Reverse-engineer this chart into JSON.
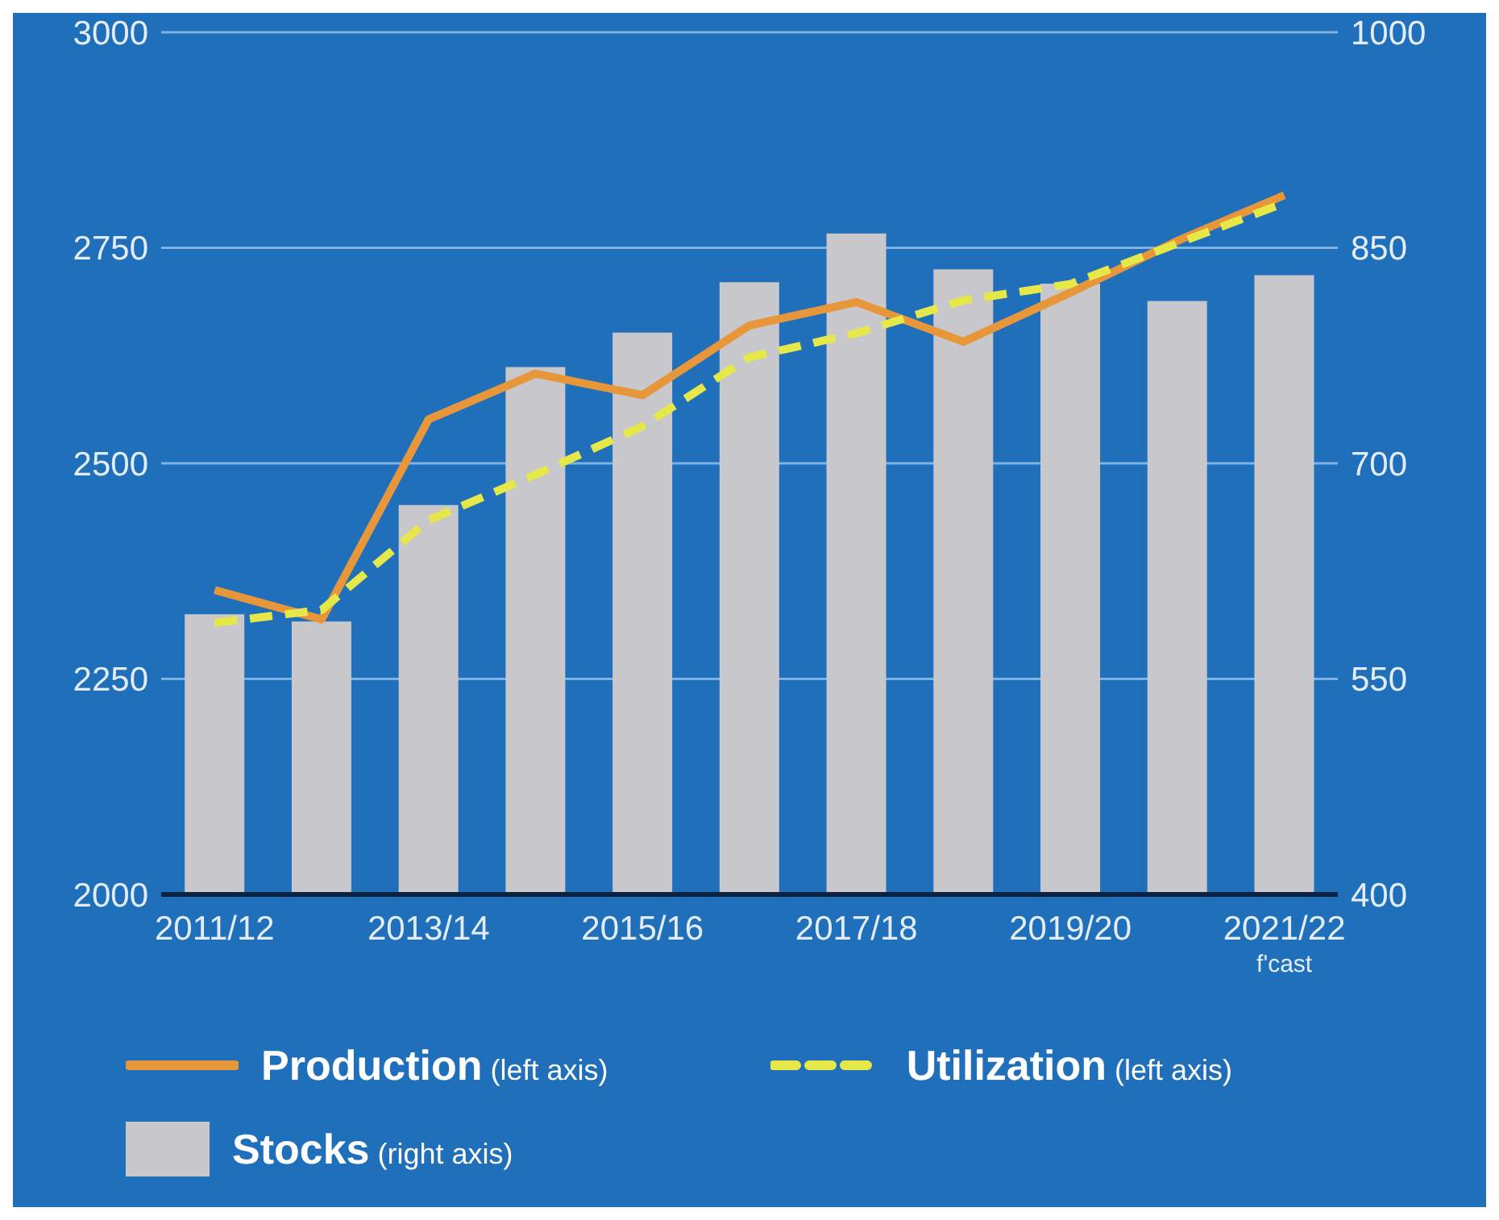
{
  "chart_data": {
    "type": "bar",
    "categories": [
      "2011/12",
      null,
      "2013/14",
      null,
      "2015/16",
      null,
      "2017/18",
      null,
      "2019/20",
      null,
      "2021/22\nf'cast"
    ],
    "series": [
      {
        "name": "Stocks (right axis)",
        "axis": "y2",
        "color": "#c8c8cc",
        "values": [
          595,
          590,
          671,
          767,
          791,
          826,
          860,
          835,
          825,
          813,
          831
        ]
      },
      {
        "name": "Production (left axis)",
        "type": "line",
        "color": "#e8963a",
        "line_style": "solid",
        "values": [
          2353,
          2319,
          2551,
          2604,
          2579,
          2660,
          2687,
          2641,
          2698,
          2758,
          2811
        ]
      },
      {
        "name": "Utilization (left axis)",
        "type": "line",
        "color": "#e6e84a",
        "line_style": "dashed",
        "values": [
          2315,
          2330,
          2434,
          2487,
          2543,
          2623,
          2651,
          2689,
          2708,
          2755,
          2802
        ]
      }
    ],
    "ylim": [
      2000,
      3000
    ],
    "yticks": [
      2000,
      2250,
      2500,
      2750,
      3000
    ],
    "y2lim": [
      400,
      1000
    ],
    "y2ticks": [
      400,
      550,
      700,
      850,
      1000
    ],
    "grid": "y",
    "legend": "bottom",
    "marker": "none"
  }
}
